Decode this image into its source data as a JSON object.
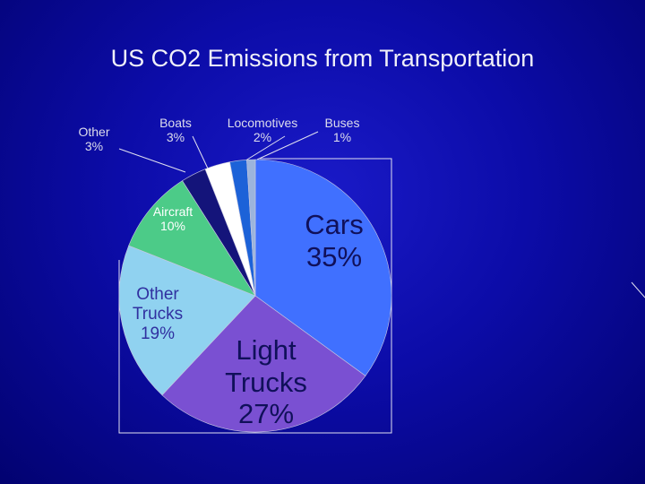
{
  "chart_data": {
    "type": "pie",
    "title": "US CO2 Emissions from Transportation",
    "categories": [
      "Cars",
      "Light Trucks",
      "Other Trucks",
      "Aircraft",
      "Other",
      "Boats",
      "Locomotives",
      "Buses"
    ],
    "values": [
      35,
      27,
      19,
      10,
      3,
      3,
      2,
      1
    ],
    "value_labels": [
      "35%",
      "27%",
      "19%",
      "10%",
      "3%",
      "3%",
      "2%",
      "1%"
    ],
    "colors": [
      "#4070ff",
      "#7a50d2",
      "#90d2f0",
      "#4ccb88",
      "#14147a",
      "#ffffff",
      "#1c62d8",
      "#9cb4dc"
    ]
  }
}
